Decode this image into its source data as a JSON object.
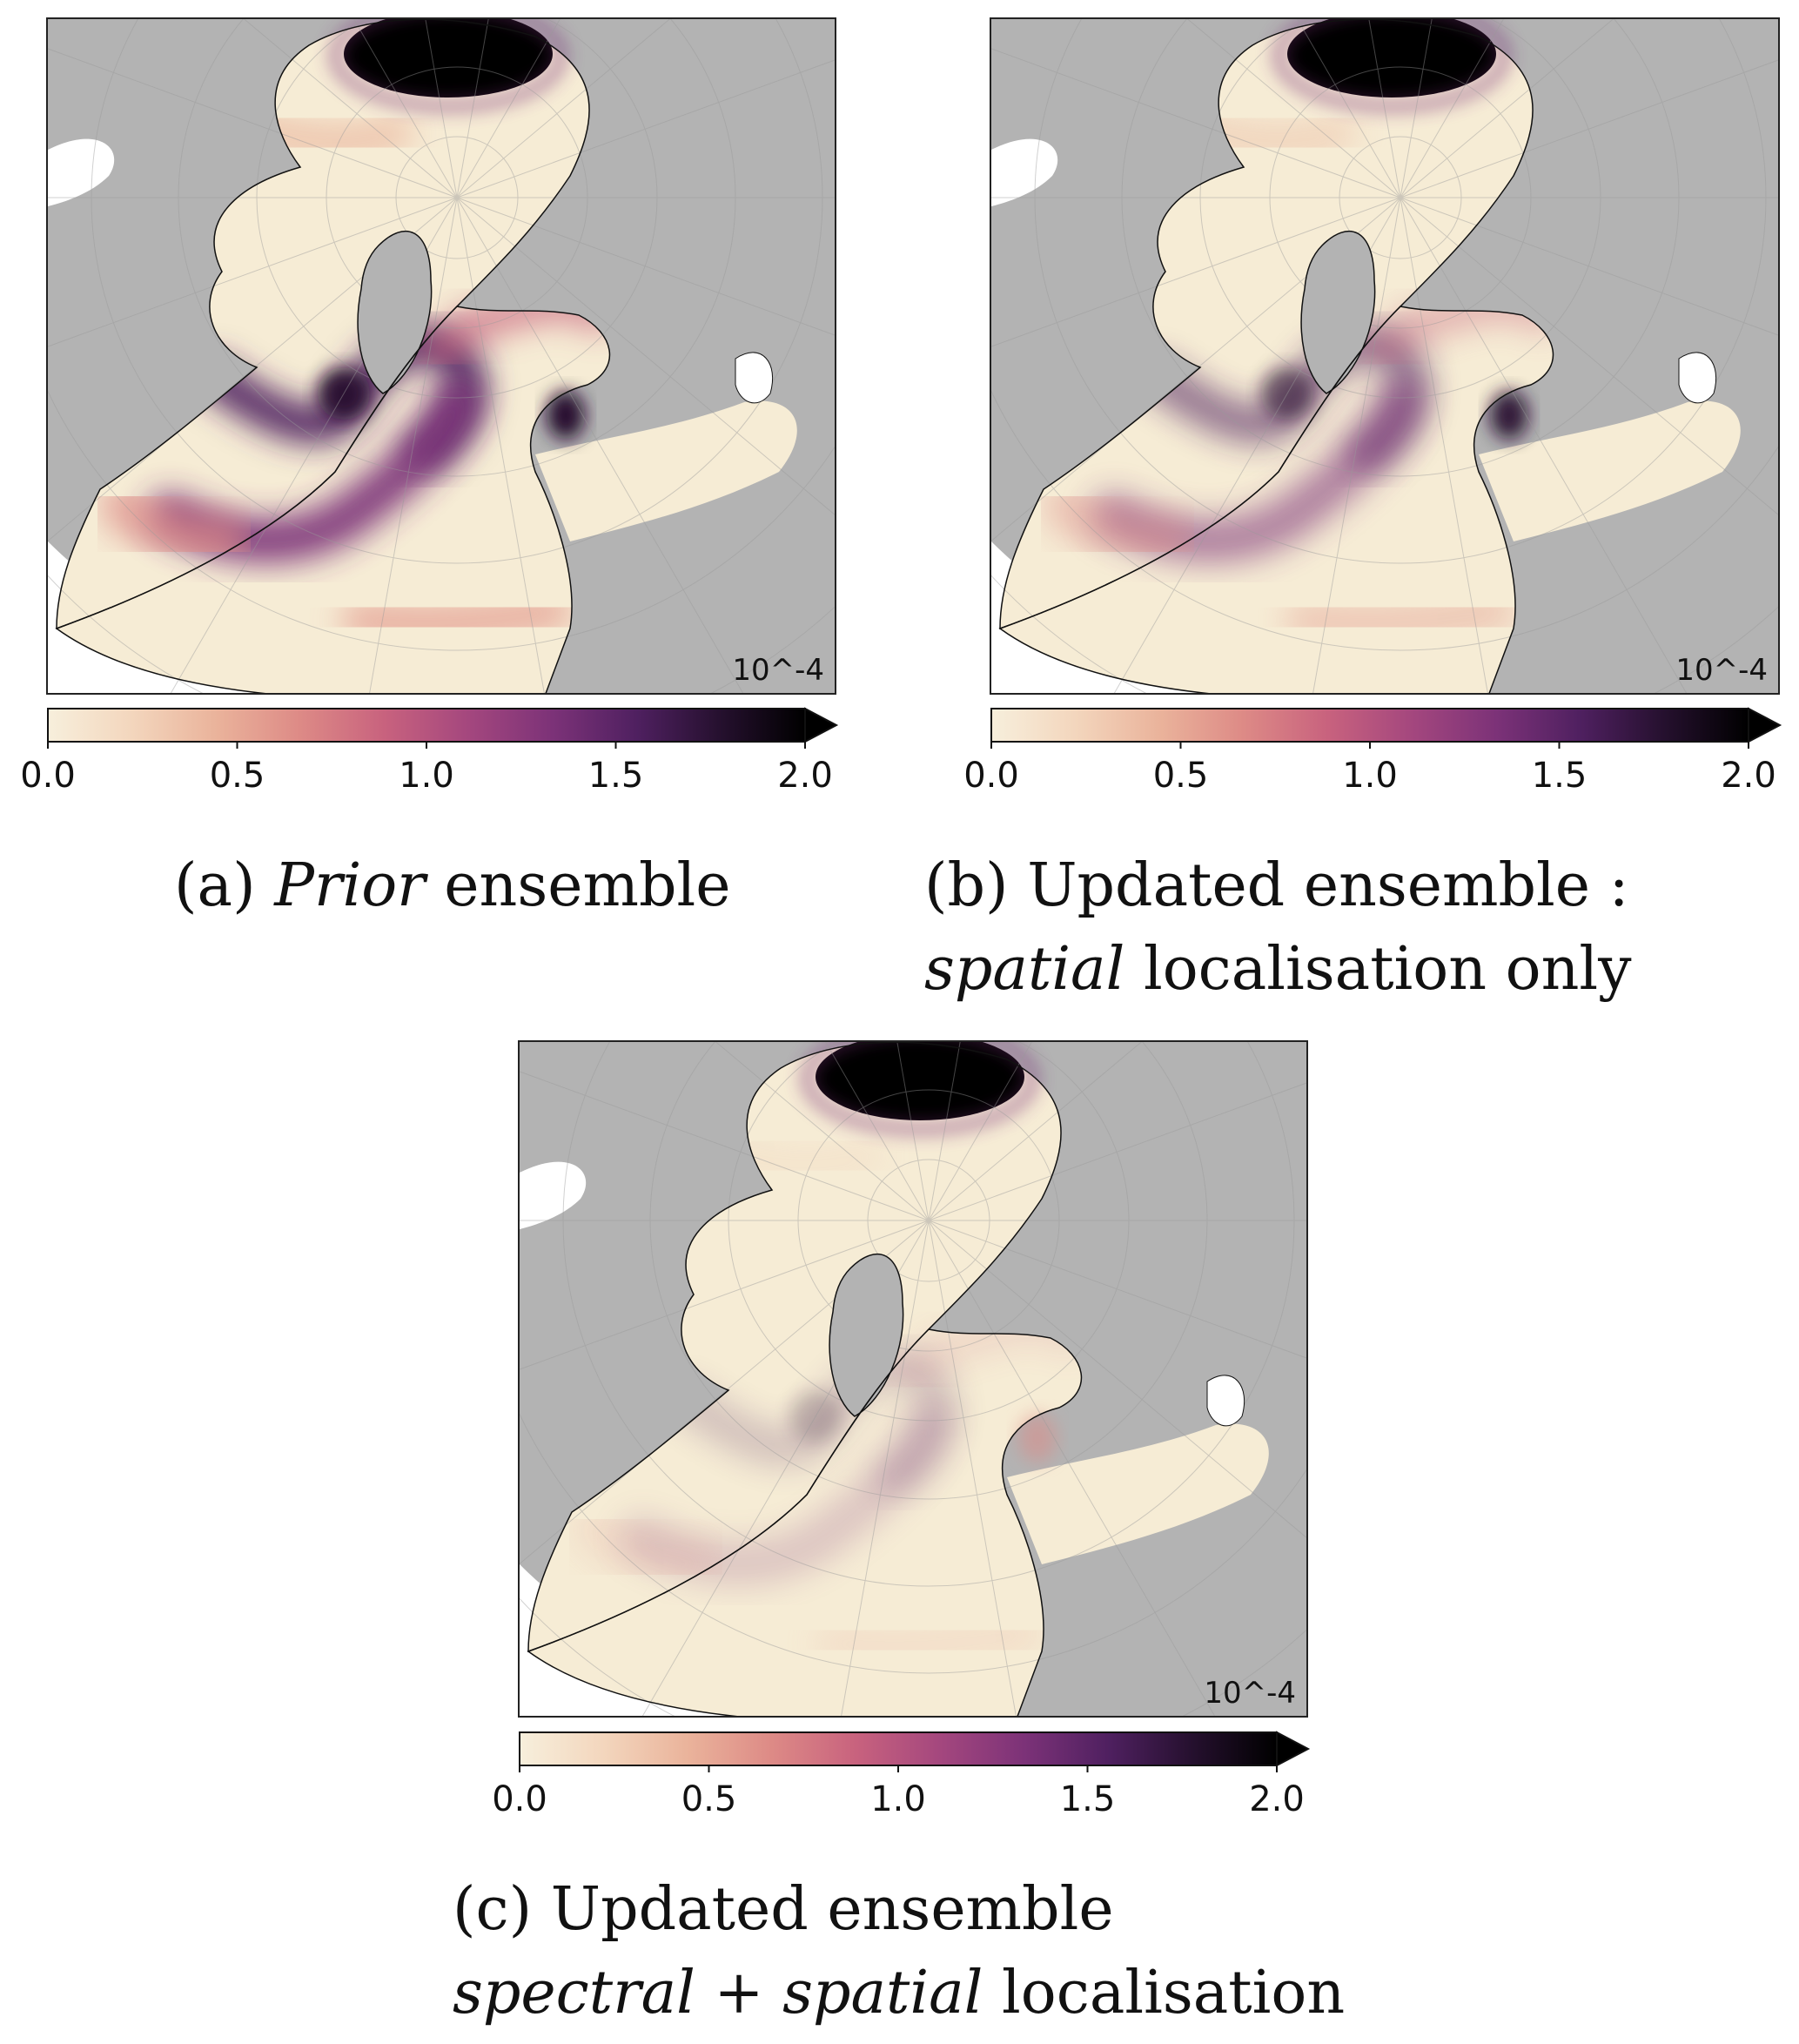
{
  "panels": [
    {
      "unit_label": "10^-4",
      "colorbar": {
        "ticks": [
          "0.0",
          "0.5",
          "1.0",
          "1.5",
          "2.0"
        ],
        "min": 0.0,
        "max": 2.0,
        "extend": "max"
      },
      "caption": {
        "prefix": "(a) ",
        "italic": "Prior",
        "suffix": " ensemble",
        "line2_italic": "",
        "line2_suffix": ""
      },
      "intensity": 1.0
    },
    {
      "unit_label": "10^-4",
      "colorbar": {
        "ticks": [
          "0.0",
          "0.5",
          "1.0",
          "1.5",
          "2.0"
        ],
        "min": 0.0,
        "max": 2.0,
        "extend": "max"
      },
      "caption": {
        "prefix": "(b) Updated ensemble :",
        "italic": "",
        "suffix": "",
        "line2_italic": "spatial",
        "line2_suffix": " localisation only"
      },
      "intensity": 0.62
    },
    {
      "unit_label": "10^-4",
      "colorbar": {
        "ticks": [
          "0.0",
          "0.5",
          "1.0",
          "1.5",
          "2.0"
        ],
        "min": 0.0,
        "max": 2.0,
        "extend": "max"
      },
      "caption": {
        "prefix": "(c) Updated ensemble",
        "italic": "",
        "suffix": "",
        "line2_italic": "spectral",
        "line2_mid": " + ",
        "line2_italic2": "spatial",
        "line2_suffix": " localisation"
      },
      "intensity": 0.22
    }
  ],
  "colormap": [
    "#f7efdc",
    "#f3d6bd",
    "#eab39b",
    "#dd8a86",
    "#c8627e",
    "#a4477e",
    "#7c3278",
    "#4f2060",
    "#25102e",
    "#000000"
  ],
  "land_color": "#b3b3b3",
  "ocean_base_color": "#f6ecd5"
}
